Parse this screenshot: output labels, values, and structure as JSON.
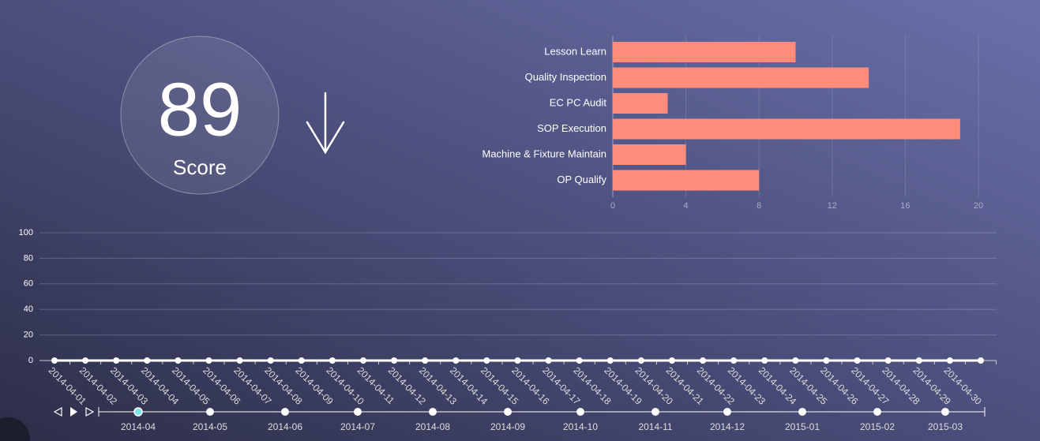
{
  "score": {
    "value": 89,
    "label": "Score"
  },
  "chart_data": [
    {
      "type": "bar",
      "orientation": "horizontal",
      "categories": [
        "Lesson Learn",
        "Quality Inspection",
        "EC PC Audit",
        "SOP Execution",
        "Machine & Fixture Maintain",
        "OP Qualify"
      ],
      "values": [
        10,
        14,
        3,
        19,
        4,
        8
      ],
      "color": "#fd8c7b",
      "xlim": [
        0,
        20
      ],
      "xticks": [
        0,
        4,
        8,
        12,
        16,
        20
      ],
      "grid": true
    },
    {
      "type": "line",
      "categories": [
        "2014-04-01",
        "2014-04-02",
        "2014-04-03",
        "2014-04-04",
        "2014-04-05",
        "2014-04-06",
        "2014-04-07",
        "2014-04-08",
        "2014-04-09",
        "2014-04-10",
        "2014-04-11",
        "2014-04-12",
        "2014-04-13",
        "2014-04-14",
        "2014-04-15",
        "2014-04-16",
        "2014-04-17",
        "2014-04-18",
        "2014-04-19",
        "2014-04-20",
        "2014-04-21",
        "2014-04-22",
        "2014-04-23",
        "2014-04-24",
        "2014-04-25",
        "2014-04-26",
        "2014-04-27",
        "2014-04-28",
        "2014-04-29",
        "2014-04-30",
        null
      ],
      "values": [
        0,
        0,
        0,
        0,
        0,
        0,
        0,
        0,
        0,
        0,
        0,
        0,
        0,
        0,
        0,
        0,
        0,
        0,
        0,
        0,
        0,
        0,
        0,
        0,
        0,
        0,
        0,
        0,
        0,
        0,
        0
      ],
      "color": "#ffffff",
      "ylim": [
        0,
        100
      ],
      "yticks": [
        0,
        20,
        40,
        60,
        80,
        100
      ],
      "grid": true
    }
  ],
  "timeline": {
    "months": [
      "2014-04",
      "2014-05",
      "2014-06",
      "2014-07",
      "2014-08",
      "2014-09",
      "2014-10",
      "2014-11",
      "2014-12",
      "2015-01",
      "2015-02",
      "2015-03"
    ],
    "current": "2014-04"
  }
}
